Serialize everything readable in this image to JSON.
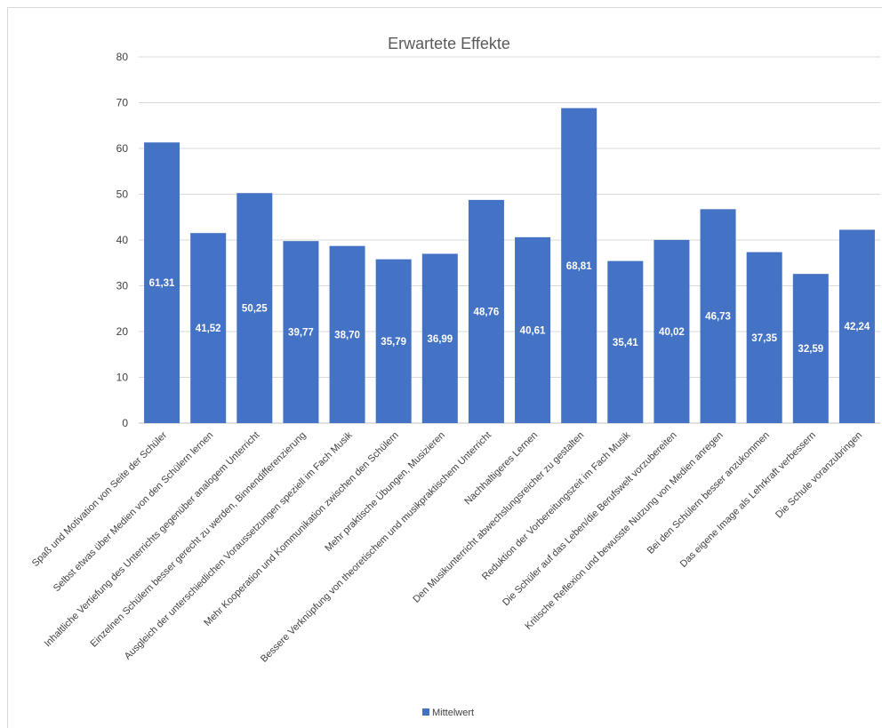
{
  "chart_data": {
    "type": "bar",
    "title": "Erwartete Effekte",
    "xlabel": "",
    "ylabel": "",
    "ylim": [
      0,
      80
    ],
    "yticks": [
      0,
      10,
      20,
      30,
      40,
      50,
      60,
      70,
      80
    ],
    "grid": true,
    "legend_position": "bottom",
    "bar_color": "#4472c4",
    "categories": [
      "Spaß und Motivation von Seite der Schüler",
      "Selbst etwas über Medien von den Schülern lernen",
      "Inhaltliche Vertiefung des Unterrichts gegenüber analogem Unterricht",
      "Einzelnen Schülern besser gerecht zu werden, Binnendifferenzierung",
      "Ausgleich der unterschiedlichen Voraussetzungen speziell im Fach Musik",
      "Mehr Kooperation und Kommunikation zwischen den Schülern",
      "Mehr praktische Übungen, Musizieren",
      "Bessere Verknüpfung von theoretischem und musikpraktischem Unterricht",
      "Nachhaltigeres Lernen",
      "Den Musikunterricht abwechslungsreicher zu gestalten",
      "Reduktion der Vorbereitungszeit im Fach Musik",
      "Die Schüler auf das Leben/die Berufswelt vorzubereiten",
      "Kritische Reflexion und bewusste Nutzung von Medien anregen",
      "Bei den Schülern besser anzukommen",
      "Das eigene Image als Lehrkraft verbessern",
      "Die Schule voranzubringen"
    ],
    "series": [
      {
        "name": "Mittelwert",
        "values": [
          61.31,
          41.52,
          50.25,
          39.77,
          38.7,
          35.79,
          36.99,
          48.76,
          40.61,
          68.81,
          35.41,
          40.02,
          46.73,
          37.35,
          32.59,
          42.24
        ],
        "labels": [
          "61,31",
          "41,52",
          "50,25",
          "39,77",
          "38,70",
          "35,79",
          "36,99",
          "48,76",
          "40,61",
          "68,81",
          "35,41",
          "40,02",
          "46,73",
          "37,35",
          "32,59",
          "42,24"
        ]
      }
    ]
  }
}
